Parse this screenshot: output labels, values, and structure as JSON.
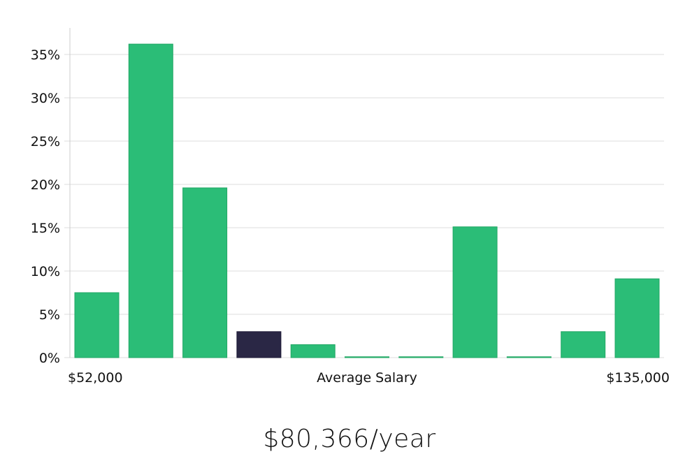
{
  "colors": {
    "bar": "#2bbd77",
    "bar_border": "#22a765",
    "highlight": "#2a2745",
    "gridline": "#dcdcdc",
    "axis": "#cccccc"
  },
  "caption": {
    "average_salary": "$80,366/year"
  },
  "chart_data": {
    "type": "bar",
    "categories": [
      "1",
      "2",
      "3",
      "4",
      "5",
      "6",
      "7",
      "8",
      "9",
      "10",
      "11"
    ],
    "values": [
      7.5,
      36.2,
      19.6,
      3.0,
      1.5,
      0.1,
      0.1,
      15.1,
      0.1,
      3.0,
      9.1
    ],
    "highlight_index": 3,
    "ylim": [
      0,
      38
    ],
    "yticks": [
      0,
      5,
      10,
      15,
      20,
      25,
      30,
      35
    ],
    "ytick_labels": [
      "0%",
      "5%",
      "10%",
      "15%",
      "20%",
      "25%",
      "30%",
      "35%"
    ],
    "xlabel": "Average Salary",
    "x_min_label": "$52,000",
    "x_max_label": "$135,000",
    "ylabel": "",
    "grid": true
  }
}
